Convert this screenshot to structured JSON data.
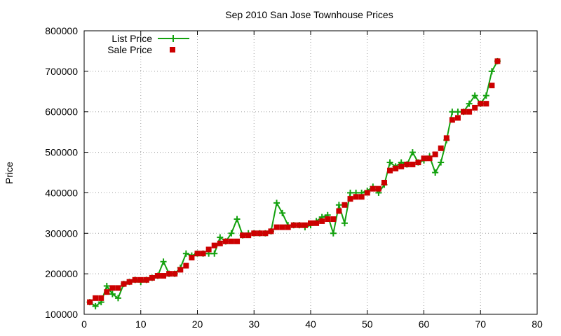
{
  "chart_data": {
    "type": "line",
    "title": "Sep 2010 San Jose Townhouse Prices",
    "xlabel": "",
    "ylabel": "Price",
    "xlim": [
      0,
      80
    ],
    "ylim": [
      100000,
      800000
    ],
    "xticks": [
      "0",
      "10",
      "20",
      "30",
      "40",
      "50",
      "60",
      "70",
      "80"
    ],
    "yticks": [
      "100000",
      "200000",
      "300000",
      "400000",
      "500000",
      "600000",
      "700000",
      "800000"
    ],
    "grid": true,
    "legend_position": "top-left",
    "series": [
      {
        "name": "List Price",
        "style": "line-with-plus-markers",
        "color": "#13a10e",
        "x": [
          1,
          2,
          3,
          4,
          5,
          6,
          7,
          8,
          9,
          10,
          11,
          12,
          13,
          14,
          15,
          16,
          17,
          18,
          19,
          20,
          21,
          22,
          23,
          24,
          25,
          26,
          27,
          28,
          29,
          30,
          31,
          32,
          33,
          34,
          35,
          36,
          37,
          38,
          39,
          40,
          41,
          42,
          43,
          44,
          45,
          46,
          47,
          48,
          49,
          50,
          51,
          52,
          53,
          54,
          55,
          56,
          57,
          58,
          59,
          60,
          61,
          62,
          63,
          64,
          65,
          66,
          67,
          68,
          69,
          70,
          71,
          72,
          73
        ],
        "y": [
          130000,
          120000,
          130000,
          170000,
          150000,
          140000,
          175000,
          180000,
          185000,
          180000,
          185000,
          190000,
          195000,
          230000,
          200000,
          200000,
          215000,
          250000,
          245000,
          250000,
          250000,
          250000,
          250000,
          290000,
          280000,
          300000,
          335000,
          295000,
          300000,
          300000,
          300000,
          300000,
          305000,
          375000,
          350000,
          320000,
          320000,
          320000,
          315000,
          320000,
          330000,
          340000,
          345000,
          300000,
          370000,
          325000,
          400000,
          400000,
          400000,
          405000,
          415000,
          400000,
          420000,
          475000,
          465000,
          475000,
          470000,
          500000,
          475000,
          480000,
          490000,
          450000,
          475000,
          530000,
          600000,
          600000,
          600000,
          620000,
          640000,
          620000,
          640000,
          700000,
          725000
        ]
      },
      {
        "name": "Sale Price",
        "style": "square-markers",
        "color": "#cc0000",
        "x": [
          1,
          2,
          3,
          4,
          5,
          6,
          7,
          8,
          9,
          10,
          11,
          12,
          13,
          14,
          15,
          16,
          17,
          18,
          19,
          20,
          21,
          22,
          23,
          24,
          25,
          26,
          27,
          28,
          29,
          30,
          31,
          32,
          33,
          34,
          35,
          36,
          37,
          38,
          39,
          40,
          41,
          42,
          43,
          44,
          45,
          46,
          47,
          48,
          49,
          50,
          51,
          52,
          53,
          54,
          55,
          56,
          57,
          58,
          59,
          60,
          61,
          62,
          63,
          64,
          65,
          66,
          67,
          68,
          69,
          70,
          71,
          72,
          73
        ],
        "y": [
          130000,
          140000,
          140000,
          155000,
          165000,
          165000,
          175000,
          180000,
          185000,
          185000,
          185000,
          190000,
          195000,
          195000,
          200000,
          200000,
          210000,
          220000,
          240000,
          250000,
          250000,
          260000,
          270000,
          275000,
          280000,
          280000,
          280000,
          295000,
          295000,
          300000,
          300000,
          300000,
          305000,
          315000,
          315000,
          315000,
          320000,
          320000,
          320000,
          325000,
          325000,
          330000,
          335000,
          335000,
          355000,
          370000,
          385000,
          390000,
          390000,
          400000,
          410000,
          410000,
          425000,
          455000,
          460000,
          465000,
          470000,
          470000,
          475000,
          485000,
          485000,
          495000,
          510000,
          535000,
          580000,
          585000,
          600000,
          600000,
          610000,
          620000,
          620000,
          665000,
          725000
        ]
      }
    ]
  }
}
